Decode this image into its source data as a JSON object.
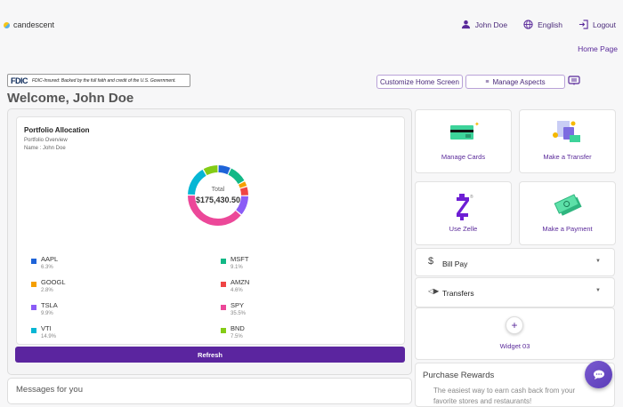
{
  "brand": {
    "name": "candescent"
  },
  "topnav": {
    "user": "John Doe",
    "language": "English",
    "logout": "Logout",
    "home_page": "Home Page"
  },
  "fdic": {
    "logo": "FDIC",
    "text": "FDIC-Insured: Backed by the full faith and credit of the U.S. Government."
  },
  "actions": {
    "customize": "Customize Home Screen",
    "manage_aspects": "Manage Aspects"
  },
  "welcome": "Welcome, John Doe",
  "portfolio": {
    "title": "Portfolio Allocation",
    "subtitle": "Portfolio Overview",
    "name_line": "Name : John Doe",
    "total_label": "Total",
    "total_value": "$175,430.50",
    "refresh_label": "Refresh"
  },
  "chart_data": {
    "type": "pie",
    "title": "Portfolio Allocation",
    "total": "$175,430.50",
    "categories": [
      "AAPL",
      "MSFT",
      "GOOGL",
      "AMZN",
      "TSLA",
      "SPY",
      "VTI",
      "BND"
    ],
    "values": [
      6.3,
      9.1,
      2.8,
      4.6,
      9.9,
      35.5,
      14.9,
      7.5
    ],
    "colors": [
      "#1e63d8",
      "#12b886",
      "#f59f00",
      "#ef4444",
      "#8b5cf6",
      "#ec4899",
      "#06b6d4",
      "#84cc16"
    ]
  },
  "legend": [
    {
      "ticker": "AAPL",
      "pct": "6.3%",
      "color": "#1e63d8"
    },
    {
      "ticker": "MSFT",
      "pct": "9.1%",
      "color": "#12b886"
    },
    {
      "ticker": "GOOGL",
      "pct": "2.8%",
      "color": "#f59f00"
    },
    {
      "ticker": "AMZN",
      "pct": "4.6%",
      "color": "#ef4444"
    },
    {
      "ticker": "TSLA",
      "pct": "9.9%",
      "color": "#8b5cf6"
    },
    {
      "ticker": "SPY",
      "pct": "35.5%",
      "color": "#ec4899"
    },
    {
      "ticker": "VTI",
      "pct": "14.9%",
      "color": "#06b6d4"
    },
    {
      "ticker": "BND",
      "pct": "7.5%",
      "color": "#84cc16"
    }
  ],
  "messages": {
    "title": "Messages for you"
  },
  "tiles": [
    {
      "label": "Manage Cards"
    },
    {
      "label": "Make a Transfer"
    },
    {
      "label": "Use Zelle"
    },
    {
      "label": "Make a Payment"
    }
  ],
  "accordions": [
    {
      "label": "Bill Pay"
    },
    {
      "label": "Transfers"
    }
  ],
  "widget": {
    "label": "Widget 03"
  },
  "rewards": {
    "title": "Purchase Rewards",
    "desc": "The easiest way to earn cash back from your favorite stores and restaurants!"
  }
}
